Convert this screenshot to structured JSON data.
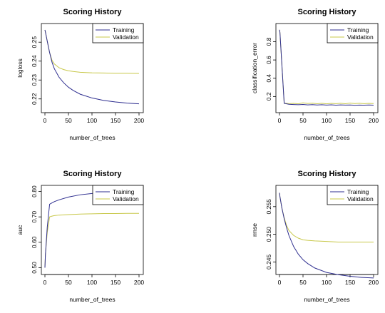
{
  "chart_data": [
    {
      "type": "line",
      "title": "Scoring History",
      "xlabel": "number_of_trees",
      "ylabel": "logloss",
      "xlim": [
        0,
        200
      ],
      "ylim": [
        0.215,
        0.258
      ],
      "xticks": [
        0,
        50,
        100,
        150,
        200
      ],
      "yticks": [
        0.22,
        0.23,
        0.24,
        0.25
      ],
      "ytick_labels": [
        "0.22",
        "0.23",
        "0.24",
        "0.25"
      ],
      "legend": "top-right",
      "x": [
        0,
        1,
        5,
        10,
        15,
        20,
        30,
        40,
        50,
        60,
        75,
        100,
        125,
        150,
        175,
        200
      ],
      "series": [
        {
          "name": "Training",
          "color": "#2e2e8f",
          "values": [
            0.2565,
            0.2555,
            0.2505,
            0.2445,
            0.2395,
            0.236,
            0.2315,
            0.2285,
            0.2262,
            0.2245,
            0.2225,
            0.2205,
            0.2192,
            0.2184,
            0.2178,
            0.2174
          ]
        },
        {
          "name": "Validation",
          "color": "#c8c84a",
          "values": [
            0.2565,
            0.2555,
            0.2505,
            0.2445,
            0.2405,
            0.2385,
            0.2365,
            0.2355,
            0.2349,
            0.2345,
            0.2341,
            0.2338,
            0.2337,
            0.2336,
            0.2336,
            0.2335
          ]
        }
      ]
    },
    {
      "type": "line",
      "title": "Scoring History",
      "xlabel": "number_of_trees",
      "ylabel": "classification_error",
      "xlim": [
        0,
        200
      ],
      "ylim": [
        0.07,
        0.96
      ],
      "xticks": [
        0,
        50,
        100,
        150,
        200
      ],
      "yticks": [
        0.2,
        0.4,
        0.6,
        0.8
      ],
      "ytick_labels": [
        "0.2",
        "0.4",
        "0.6",
        "0.8"
      ],
      "legend": "top-right",
      "x": [
        0,
        1,
        10,
        20,
        30,
        40,
        50,
        60,
        70,
        80,
        90,
        100,
        110,
        120,
        130,
        140,
        150,
        160,
        170,
        180,
        190,
        200
      ],
      "series": [
        {
          "name": "Training",
          "color": "#2e2e8f",
          "values": [
            0.93,
            0.9,
            0.125,
            0.115,
            0.112,
            0.11,
            0.113,
            0.108,
            0.111,
            0.107,
            0.11,
            0.106,
            0.109,
            0.105,
            0.108,
            0.106,
            0.107,
            0.104,
            0.106,
            0.105,
            0.107,
            0.105
          ]
        },
        {
          "name": "Validation",
          "color": "#c8c84a",
          "values": [
            0.93,
            0.9,
            0.128,
            0.122,
            0.125,
            0.12,
            0.13,
            0.124,
            0.127,
            0.121,
            0.126,
            0.12,
            0.125,
            0.122,
            0.126,
            0.121,
            0.128,
            0.123,
            0.126,
            0.122,
            0.125,
            0.123
          ]
        }
      ]
    },
    {
      "type": "line",
      "title": "Scoring History",
      "xlabel": "number_of_trees",
      "ylabel": "auc",
      "xlim": [
        0,
        200
      ],
      "ylim": [
        0.49,
        0.81
      ],
      "xticks": [
        0,
        50,
        100,
        150,
        200
      ],
      "yticks": [
        0.5,
        0.6,
        0.7,
        0.8
      ],
      "ytick_labels": [
        "0.50",
        "0.60",
        "0.70",
        "0.80"
      ],
      "legend": "top-right",
      "x": [
        0,
        1,
        5,
        10,
        15,
        20,
        30,
        50,
        75,
        100,
        125,
        150,
        175,
        200
      ],
      "series": [
        {
          "name": "Training",
          "color": "#2e2e8f",
          "values": [
            0.5,
            0.55,
            0.66,
            0.75,
            0.755,
            0.76,
            0.767,
            0.778,
            0.787,
            0.792,
            0.795,
            0.797,
            0.798,
            0.8
          ]
        },
        {
          "name": "Validation",
          "color": "#c8c84a",
          "values": [
            0.5,
            0.55,
            0.64,
            0.7,
            0.703,
            0.705,
            0.707,
            0.709,
            0.711,
            0.712,
            0.713,
            0.713,
            0.714,
            0.714
          ]
        }
      ]
    },
    {
      "type": "line",
      "title": "Scoring History",
      "xlabel": "number_of_trees",
      "ylabel": "rmse",
      "xlim": [
        0,
        200
      ],
      "ylim": [
        0.2435,
        0.2582
      ],
      "xticks": [
        0,
        50,
        100,
        150,
        200
      ],
      "yticks": [
        0.245,
        0.25,
        0.255
      ],
      "ytick_labels": [
        "0.245",
        "0.250",
        "0.255"
      ],
      "legend": "top-right",
      "x": [
        0,
        1,
        5,
        10,
        15,
        20,
        30,
        40,
        50,
        60,
        75,
        100,
        125,
        150,
        175,
        200
      ],
      "series": [
        {
          "name": "Training",
          "color": "#2e2e8f",
          "values": [
            0.2575,
            0.2568,
            0.2548,
            0.2528,
            0.2512,
            0.2498,
            0.2478,
            0.2464,
            0.2454,
            0.2447,
            0.2439,
            0.2431,
            0.2427,
            0.2424,
            0.2422,
            0.2421
          ]
        },
        {
          "name": "Validation",
          "color": "#c8c84a",
          "values": [
            0.2575,
            0.2568,
            0.2548,
            0.253,
            0.2516,
            0.2507,
            0.2498,
            0.2493,
            0.249,
            0.2489,
            0.2488,
            0.2487,
            0.2486,
            0.2486,
            0.2486,
            0.2486
          ]
        }
      ]
    }
  ]
}
